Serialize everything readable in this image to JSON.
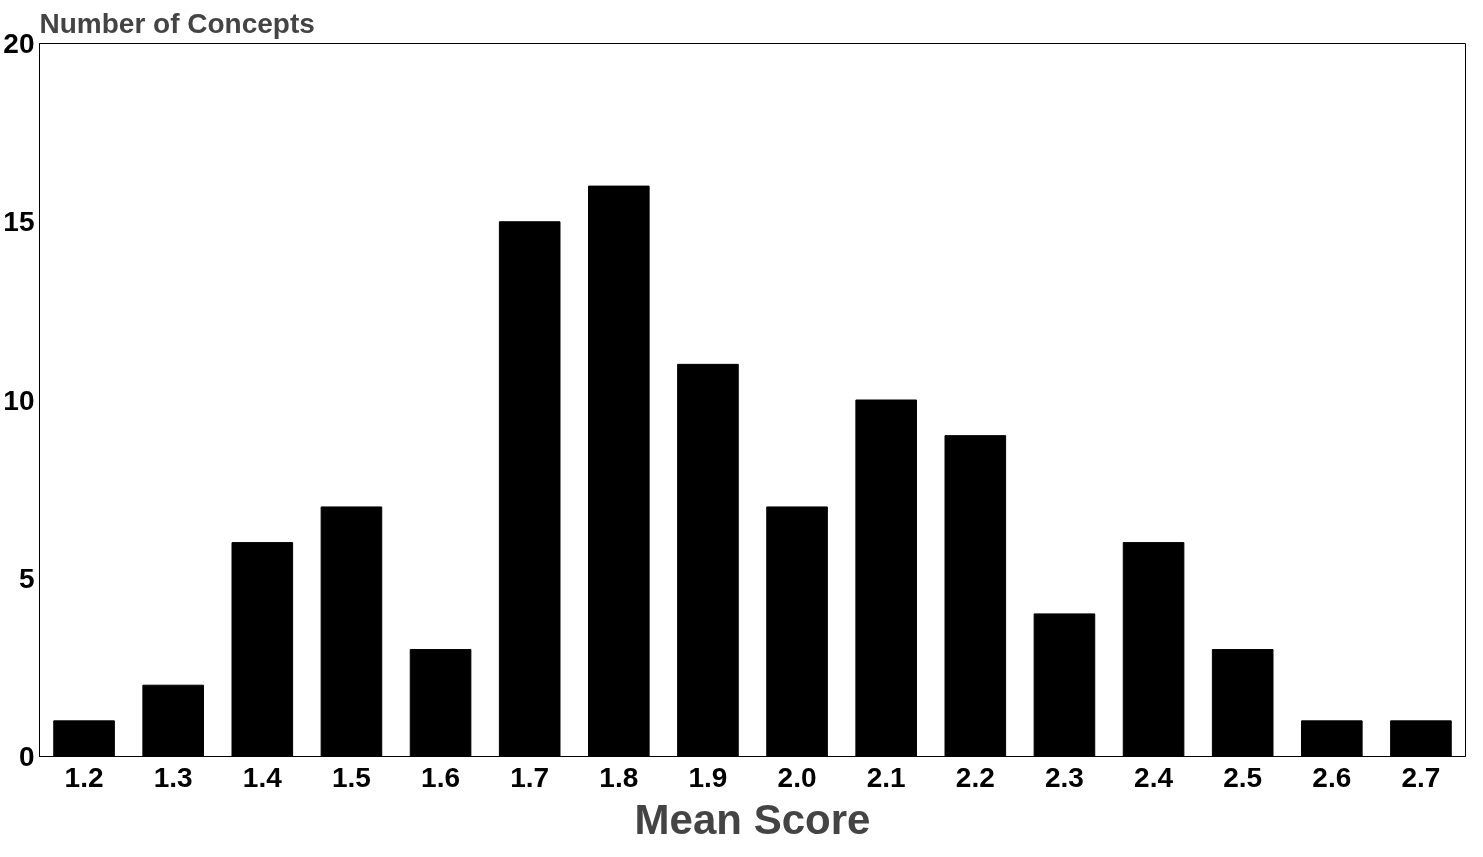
{
  "chart_data": {
    "type": "bar",
    "xlabel": "Mean Score",
    "ylabel": "Number of Concepts",
    "categories": [
      "1.2",
      "1.3",
      "1.4",
      "1.5",
      "1.6",
      "1.7",
      "1.8",
      "1.9",
      "2.0",
      "2.1",
      "2.2",
      "2.3",
      "2.4",
      "2.5",
      "2.6",
      "2.7"
    ],
    "values": [
      1,
      2,
      6,
      7,
      3,
      15,
      16,
      11,
      7,
      10,
      9,
      4,
      6,
      3,
      1,
      1
    ],
    "color": "#000000",
    "ylim": [
      0,
      20
    ],
    "yticks": [
      0,
      5,
      10,
      15,
      20
    ],
    "grid": false
  }
}
